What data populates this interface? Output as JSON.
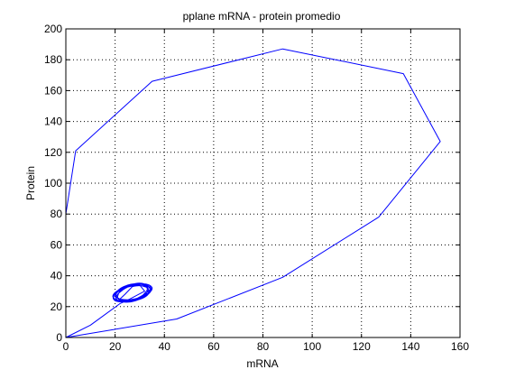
{
  "chart_data": {
    "type": "line",
    "title": "pplane mRNA - protein promedio",
    "xlabel": "mRNA",
    "ylabel": "Protein",
    "xlim": [
      0,
      160
    ],
    "ylim": [
      0,
      200
    ],
    "xticks": [
      0,
      20,
      40,
      60,
      80,
      100,
      120,
      140,
      160
    ],
    "yticks": [
      0,
      20,
      40,
      60,
      80,
      100,
      120,
      140,
      160,
      180,
      200
    ],
    "grid": true,
    "line_color": "#0000ff",
    "series": [
      {
        "values": [
          [
            0,
            0
          ],
          [
            45,
            12
          ],
          [
            88,
            39
          ],
          [
            127,
            78
          ],
          [
            152,
            127
          ],
          [
            137,
            171
          ],
          [
            88,
            187
          ],
          [
            35,
            166
          ],
          [
            4,
            121
          ],
          [
            0,
            80
          ],
          [
            0,
            0
          ],
          [
            10,
            8
          ],
          [
            22,
            22
          ],
          [
            26,
            25
          ],
          [
            32,
            30
          ],
          [
            30,
            34
          ],
          [
            27,
            33
          ],
          [
            24,
            28
          ],
          [
            22,
            25
          ]
        ]
      }
    ],
    "limit_cycle": {
      "center": [
        27,
        29
      ],
      "rx": 7.5,
      "ry": 4.5,
      "angle_deg": 30,
      "loops": 10
    }
  }
}
